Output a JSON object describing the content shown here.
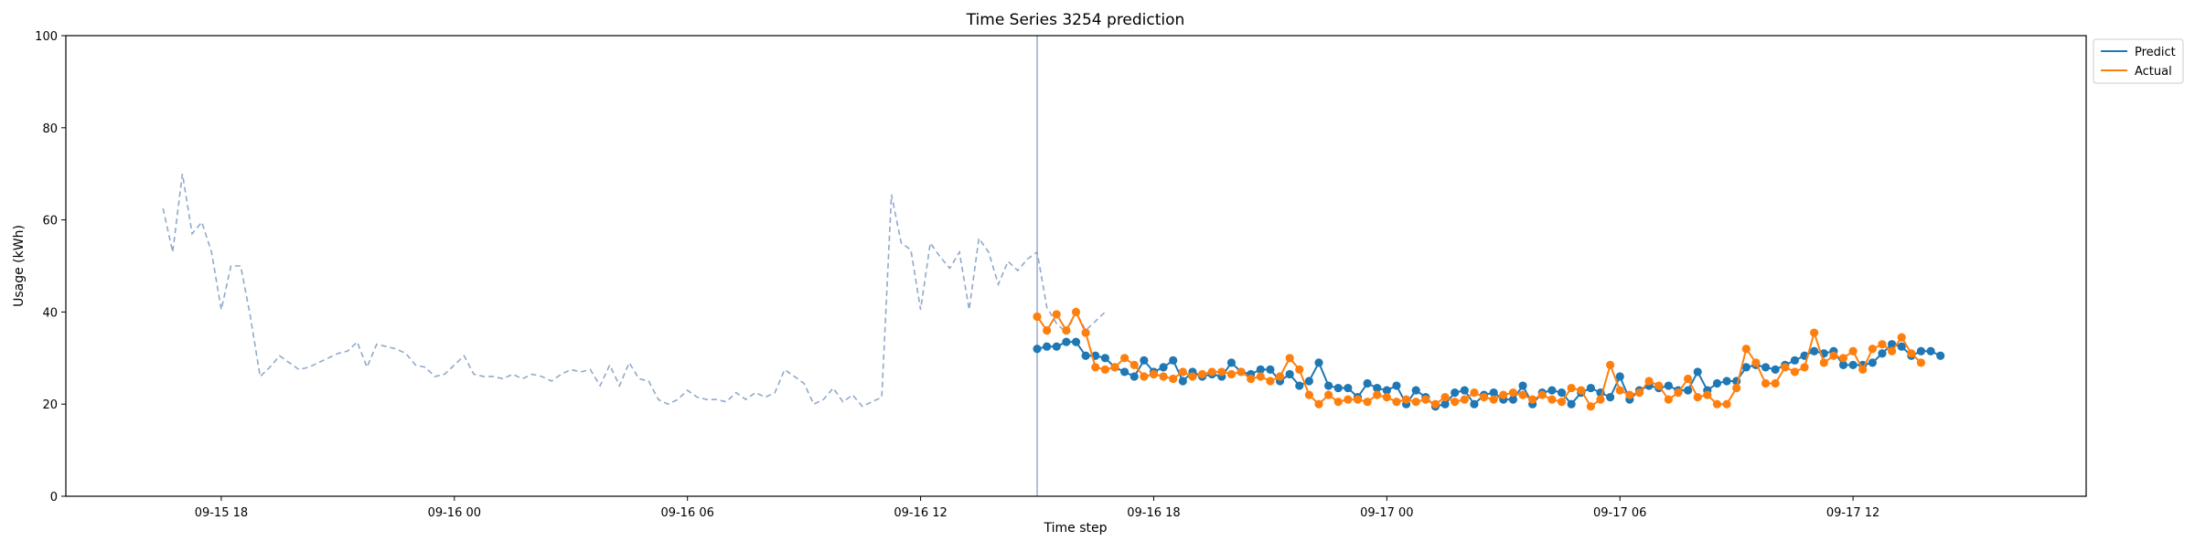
{
  "chart_data": {
    "type": "line",
    "title": "Time Series 3254 prediction",
    "xlabel": "Time step",
    "ylabel": "Usage (kWh)",
    "ylim": [
      0,
      100
    ],
    "y_ticks": [
      0,
      20,
      40,
      60,
      80,
      100
    ],
    "x_ticks": [
      {
        "t": 18,
        "label": "09-15 18"
      },
      {
        "t": 24,
        "label": "09-16 00"
      },
      {
        "t": 30,
        "label": "09-16 06"
      },
      {
        "t": 36,
        "label": "09-16 12"
      },
      {
        "t": 42,
        "label": "09-16 18"
      },
      {
        "t": 48,
        "label": "09-17 00"
      },
      {
        "t": 54,
        "label": "09-17 06"
      },
      {
        "t": 60,
        "label": "09-17 12"
      }
    ],
    "xlim": [
      14,
      66
    ],
    "split_time": 39,
    "legend": {
      "position": "upper-right",
      "entries": [
        "Predict",
        "Actual"
      ]
    },
    "colors": {
      "history": "#8fa9cc",
      "predict": "#1f77b4",
      "actual": "#ff7f0e",
      "split_line": "#8fa9cc"
    },
    "history": {
      "start_time": 16.5,
      "step": 0.25,
      "values": [
        62.5,
        53,
        70,
        57,
        59.5,
        53,
        40.5,
        50,
        50,
        39,
        26,
        28,
        30.5,
        29,
        27.5,
        28,
        29,
        30,
        31,
        31.5,
        33.5,
        28,
        33,
        32.5,
        32,
        31,
        28.5,
        28,
        26,
        26.5,
        28.5,
        30.5,
        26.5,
        26,
        26,
        25.5,
        26.5,
        25.5,
        26.5,
        26,
        25,
        26.5,
        27.5,
        27,
        27.5,
        24,
        28.5,
        24,
        29,
        25.5,
        25,
        21,
        20,
        21,
        23,
        21.5,
        21,
        21,
        20.5,
        22.5,
        21,
        22.5,
        21.5,
        22.5,
        27.5,
        26,
        24.5,
        20,
        21,
        23.5,
        20.5,
        22,
        19.5,
        20.5,
        21.5,
        65.5,
        55,
        53.5,
        40.5,
        55,
        52,
        49.5,
        53,
        40.5,
        56,
        53,
        46,
        51,
        49,
        51.5,
        53,
        41,
        37.5,
        35.5,
        40,
        36,
        38,
        40
      ]
    },
    "series": [
      {
        "name": "Predict",
        "start_time": 39,
        "step": 0.25,
        "values": [
          32,
          32.5,
          32.5,
          33.5,
          33.5,
          30.5,
          30.5,
          30,
          28,
          27,
          26,
          29.5,
          27,
          28,
          29.5,
          25,
          27,
          26,
          26.5,
          26,
          29,
          27,
          26.5,
          27.5,
          27.5,
          25,
          26.5,
          24,
          25,
          29,
          24,
          23.5,
          23.5,
          21.5,
          24.5,
          23.5,
          23,
          24,
          20,
          23,
          21.5,
          19.5,
          20,
          22.5,
          23,
          20,
          22,
          22.5,
          21,
          21,
          24,
          20,
          22.5,
          23,
          22.5,
          20,
          22.5,
          23.5,
          22.5,
          21.5,
          26,
          21,
          23,
          24,
          23.5,
          24,
          23,
          23,
          27,
          23,
          24.5,
          25,
          25,
          28,
          28.5,
          28,
          27.5,
          28.5,
          29.5,
          30.5,
          31.5,
          31,
          31.5,
          28.5,
          28.5,
          28.5,
          29,
          31,
          33,
          32.5,
          30.5,
          31.5,
          31.5,
          30.5
        ]
      },
      {
        "name": "Actual",
        "start_time": 39,
        "step": 0.25,
        "values": [
          39,
          36,
          39.5,
          36,
          40,
          35.5,
          28,
          27.5,
          28,
          30,
          28.5,
          26,
          26.5,
          26,
          25.5,
          27,
          26,
          26.5,
          27,
          27,
          26.5,
          27,
          25.5,
          26,
          25,
          26,
          30,
          27.5,
          22,
          20,
          22,
          20.5,
          21,
          21,
          20.5,
          22,
          21.5,
          20.5,
          21,
          20.5,
          21,
          20,
          21.5,
          20.5,
          21,
          22.5,
          21.5,
          21,
          22,
          22.5,
          22,
          21,
          22,
          21,
          20.5,
          23.5,
          23,
          19.5,
          21,
          28.5,
          23,
          22,
          22.5,
          25,
          24,
          21,
          22.5,
          25.5,
          21.5,
          22,
          20,
          20,
          23.5,
          32,
          29,
          24.5,
          24.5,
          28,
          27,
          28,
          35.5,
          29,
          30.5,
          30,
          31.5,
          27.5,
          32,
          33,
          31.5,
          34.5,
          31,
          29
        ]
      }
    ]
  }
}
